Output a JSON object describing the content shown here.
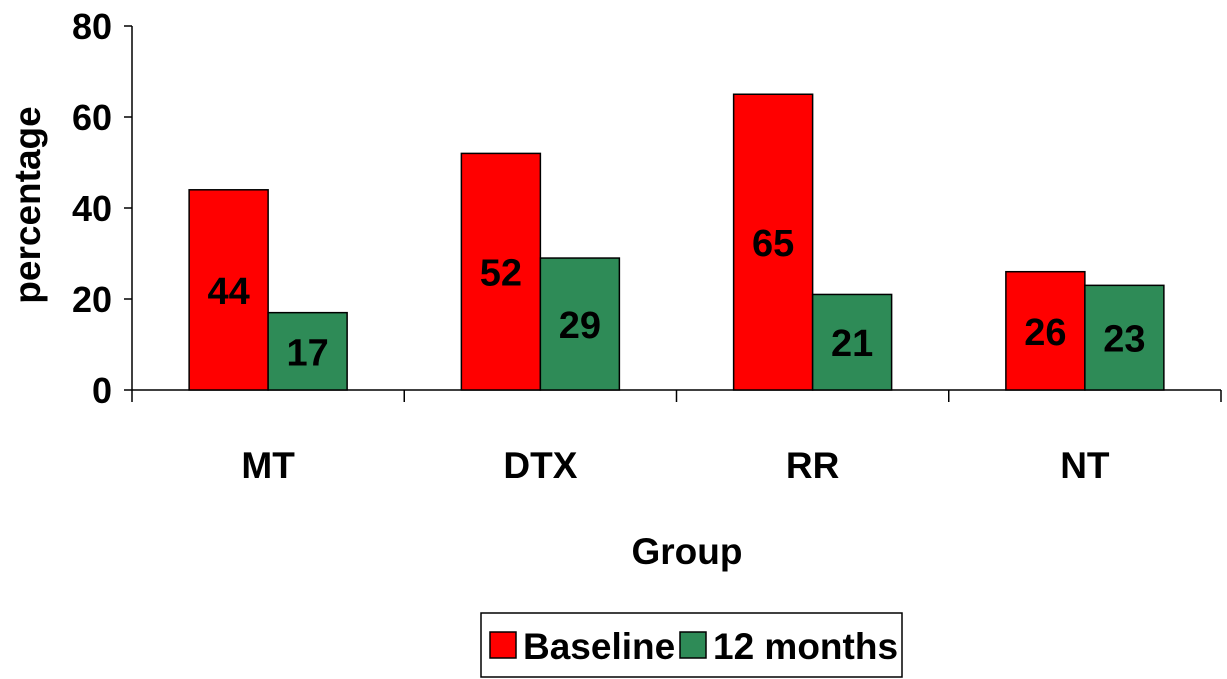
{
  "chart_data": {
    "type": "bar",
    "categories": [
      "MT",
      "DTX",
      "RR",
      "NT"
    ],
    "series": [
      {
        "name": "Baseline",
        "values": [
          44,
          52,
          65,
          26
        ],
        "color": "#FF0000"
      },
      {
        "name": "12 months",
        "values": [
          17,
          29,
          21,
          23
        ],
        "color": "#2E8B57"
      }
    ],
    "xlabel": "Group",
    "ylabel": "percentage",
    "ylim": [
      0,
      80
    ],
    "yticks": [
      0,
      20,
      40,
      60,
      80
    ],
    "grid": false,
    "legend_position": "bottom",
    "data_labels": true
  }
}
